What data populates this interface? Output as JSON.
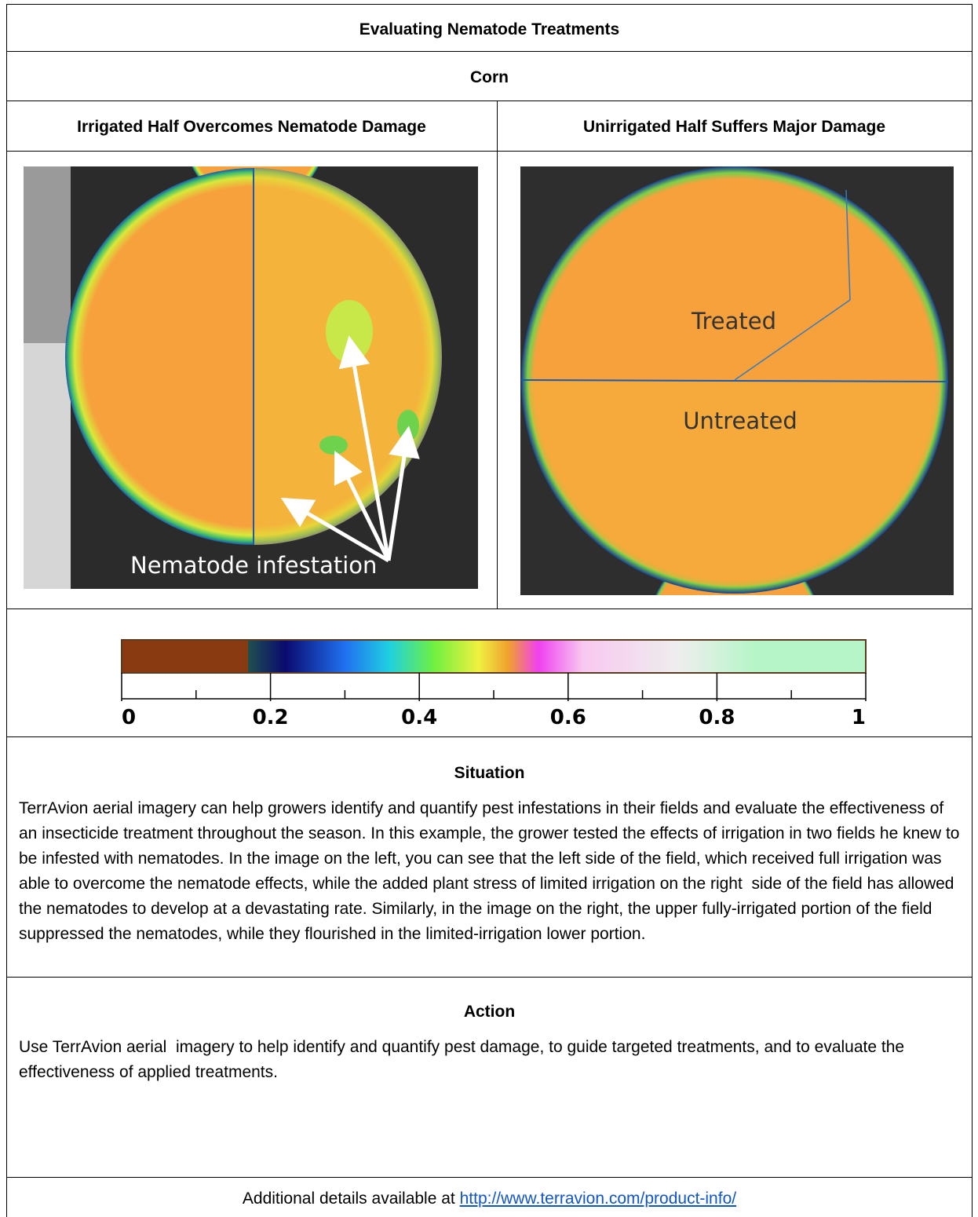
{
  "header": {
    "title": "Evaluating Nematode Treatments",
    "crop": "Corn"
  },
  "panels": [
    {
      "heading": "Irrigated Half Overcomes Nematode Damage",
      "annotations": [
        "Nematode infestation"
      ]
    },
    {
      "heading": "Unirrigated Half Suffers Major Damage",
      "annotations": [
        "Treated",
        "Untreated"
      ]
    }
  ],
  "colorbar": {
    "ticks": [
      0,
      0.2,
      0.4,
      0.6,
      0.8,
      1
    ]
  },
  "sections": [
    {
      "title": "Situation",
      "body": "TerrAvion aerial imagery can help growers identify and quantify pest infestations in their fields and evaluate the effectiveness of an insecticide treatment throughout the season. In this example, the grower tested the effects of irrigation in two fields he knew to be infested with nematodes. In the image on the left, you can see that the left side of the field, which received full irrigation was able to overcome the nematode effects, while the added plant stress of limited irrigation on the right  side of the field has allowed the nematodes to develop at a devastating rate. Similarly, in the image on the right, the upper fully-irrigated portion of the field suppressed the nematodes, while they flourished in the limited-irrigation lower portion."
    },
    {
      "title": "Action",
      "body": "Use TerrAvion aerial  imagery to help identify and quantify pest damage, to guide targeted treatments, and to evaluate the effectiveness of applied treatments."
    }
  ],
  "footer": {
    "text": "Additional details available at",
    "link": "http://www.terravion.com/product-info/"
  }
}
